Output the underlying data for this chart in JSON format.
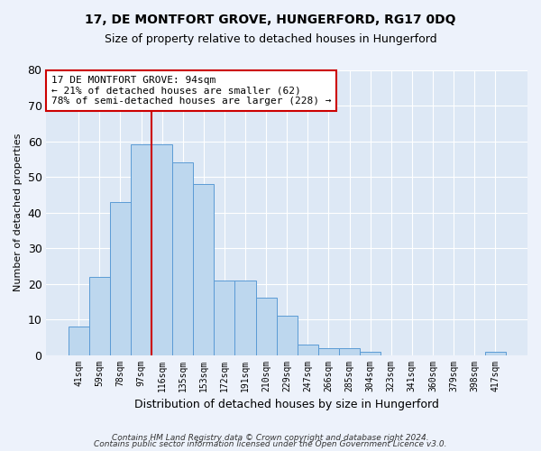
{
  "title": "17, DE MONTFORT GROVE, HUNGERFORD, RG17 0DQ",
  "subtitle": "Size of property relative to detached houses in Hungerford",
  "xlabel": "Distribution of detached houses by size in Hungerford",
  "ylabel": "Number of detached properties",
  "bar_labels": [
    "41sqm",
    "59sqm",
    "78sqm",
    "97sqm",
    "116sqm",
    "135sqm",
    "153sqm",
    "172sqm",
    "191sqm",
    "210sqm",
    "229sqm",
    "247sqm",
    "266sqm",
    "285sqm",
    "304sqm",
    "323sqm",
    "341sqm",
    "360sqm",
    "379sqm",
    "398sqm",
    "417sqm"
  ],
  "bar_values": [
    8,
    22,
    43,
    59,
    59,
    54,
    48,
    21,
    21,
    16,
    11,
    3,
    2,
    2,
    1,
    0,
    0,
    0,
    0,
    0,
    1
  ],
  "bar_color": "#bdd7ee",
  "bar_edge_color": "#5b9bd5",
  "vline_x_index": 3.5,
  "vline_color": "#cc0000",
  "annotation_line1": "17 DE MONTFORT GROVE: 94sqm",
  "annotation_line2": "← 21% of detached houses are smaller (62)",
  "annotation_line3": "78% of semi-detached houses are larger (228) →",
  "annotation_box_color": "#ffffff",
  "annotation_box_edge": "#cc0000",
  "ylim": [
    0,
    80
  ],
  "yticks": [
    0,
    10,
    20,
    30,
    40,
    50,
    60,
    70,
    80
  ],
  "footnote_line1": "Contains HM Land Registry data © Crown copyright and database right 2024.",
  "footnote_line2": "Contains public sector information licensed under the Open Government Licence v3.0.",
  "bg_color": "#edf2fb",
  "plot_bg_color": "#dde8f5",
  "title_fontsize": 10,
  "subtitle_fontsize": 9,
  "ylabel_fontsize": 8,
  "xlabel_fontsize": 9
}
